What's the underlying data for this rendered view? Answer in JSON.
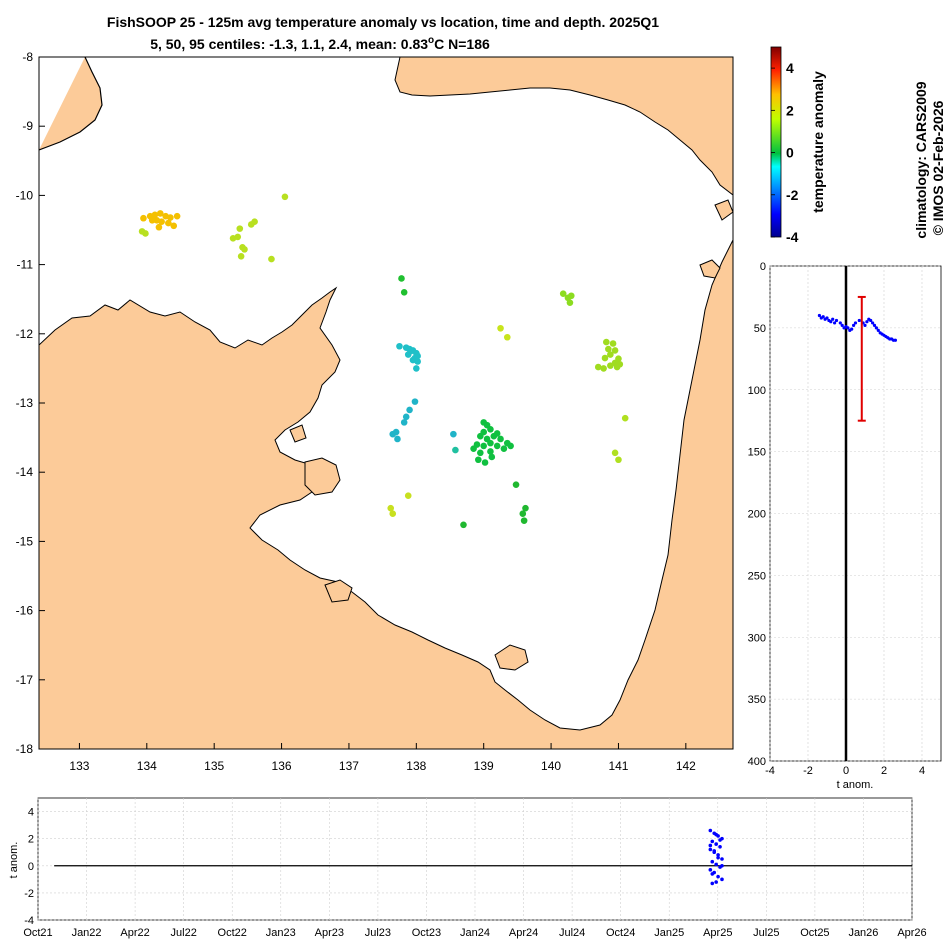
{
  "chart_data": [
    {
      "type": "scatter",
      "name": "map",
      "title": "FishSOOP 25 - 125m avg temperature anomaly vs location, time and depth. 2025Q1",
      "subtitle_prefix": "5, 50, 95 centiles: -1.3, 1.1, 2.4, mean: 0.83",
      "subtitle_unit": "o",
      "subtitle_suffix": "C N=186",
      "xlim": [
        132.4,
        142.7
      ],
      "ylim": [
        -18,
        -8
      ],
      "xticks": [
        "133",
        "134",
        "135",
        "136",
        "137",
        "138",
        "139",
        "140",
        "141",
        "142"
      ],
      "yticks": [
        "-8",
        "-9",
        "-10",
        "-11",
        "-12",
        "-13",
        "-14",
        "-15",
        "-16",
        "-17",
        "-18"
      ],
      "land_color": "#fccb99",
      "clusters": [
        {
          "name": "cluster-134.2E-10.3S",
          "color": "#f4c000",
          "points": [
            [
              133.95,
              -10.33
            ],
            [
              134.05,
              -10.3
            ],
            [
              134.12,
              -10.28
            ],
            [
              134.2,
              -10.26
            ],
            [
              134.28,
              -10.3
            ],
            [
              134.35,
              -10.32
            ],
            [
              134.45,
              -10.3
            ],
            [
              134.15,
              -10.36
            ],
            [
              134.22,
              -10.38
            ],
            [
              134.32,
              -10.4
            ],
            [
              134.4,
              -10.44
            ],
            [
              134.18,
              -10.46
            ],
            [
              134.08,
              -10.36
            ]
          ]
        },
        {
          "name": "cluster-135.4E-10.6S",
          "color": "#b8e020",
          "points": [
            [
              133.93,
              -10.52
            ],
            [
              133.98,
              -10.55
            ],
            [
              135.28,
              -10.62
            ],
            [
              135.35,
              -10.6
            ],
            [
              135.38,
              -10.48
            ],
            [
              135.55,
              -10.42
            ],
            [
              135.6,
              -10.38
            ],
            [
              135.42,
              -10.75
            ],
            [
              135.45,
              -10.78
            ],
            [
              135.4,
              -10.88
            ],
            [
              135.85,
              -10.92
            ],
            [
              136.05,
              -10.02
            ]
          ]
        },
        {
          "name": "cluster-137.8E-11.2S",
          "color": "#20c030",
          "points": [
            [
              137.78,
              -11.2
            ],
            [
              137.82,
              -11.4
            ]
          ]
        },
        {
          "name": "cluster-140.3E-11.5S",
          "color": "#8cdc20",
          "points": [
            [
              140.18,
              -11.42
            ],
            [
              140.25,
              -11.48
            ],
            [
              140.3,
              -11.45
            ],
            [
              140.28,
              -11.55
            ]
          ]
        },
        {
          "name": "cluster-139.3E-12S",
          "color": "#c8e41c",
          "points": [
            [
              139.25,
              -11.92
            ],
            [
              139.35,
              -12.05
            ]
          ]
        },
        {
          "name": "cluster-137.9E-12.4S",
          "color": "#20c0c8",
          "points": [
            [
              137.75,
              -12.18
            ],
            [
              137.85,
              -12.2
            ],
            [
              137.9,
              -12.22
            ],
            [
              137.95,
              -12.24
            ],
            [
              138.0,
              -12.28
            ],
            [
              138.02,
              -12.32
            ],
            [
              137.98,
              -12.35
            ],
            [
              138.02,
              -12.4
            ],
            [
              138.0,
              -12.5
            ],
            [
              137.95,
              -12.38
            ],
            [
              137.88,
              -12.3
            ],
            [
              137.92,
              -12.25
            ]
          ]
        },
        {
          "name": "cluster-140.9E-12.3S",
          "color": "#a0dc20",
          "points": [
            [
              140.82,
              -12.12
            ],
            [
              140.92,
              -12.14
            ],
            [
              140.85,
              -12.22
            ],
            [
              140.95,
              -12.24
            ],
            [
              140.88,
              -12.3
            ],
            [
              140.8,
              -12.35
            ],
            [
              141.0,
              -12.36
            ],
            [
              140.95,
              -12.42
            ],
            [
              140.7,
              -12.48
            ],
            [
              140.78,
              -12.5
            ],
            [
              140.88,
              -12.46
            ],
            [
              141.02,
              -12.44
            ],
            [
              140.98,
              -12.48
            ]
          ]
        },
        {
          "name": "cluster-137.8E-13.4S",
          "color": "#20b4c8",
          "points": [
            [
              137.98,
              -12.98
            ],
            [
              137.9,
              -13.1
            ],
            [
              137.85,
              -13.2
            ],
            [
              137.82,
              -13.28
            ],
            [
              137.7,
              -13.42
            ],
            [
              137.65,
              -13.45
            ],
            [
              137.72,
              -13.52
            ],
            [
              138.55,
              -13.45
            ]
          ]
        },
        {
          "name": "cluster-139.1E-13.6S",
          "color": "#10c040",
          "points": [
            [
              139.0,
              -13.28
            ],
            [
              139.05,
              -13.32
            ],
            [
              139.1,
              -13.38
            ],
            [
              139.0,
              -13.42
            ],
            [
              138.95,
              -13.48
            ],
            [
              139.05,
              -13.52
            ],
            [
              139.15,
              -13.48
            ],
            [
              139.2,
              -13.44
            ],
            [
              139.25,
              -13.52
            ],
            [
              139.1,
              -13.58
            ],
            [
              139.0,
              -13.62
            ],
            [
              138.9,
              -13.6
            ],
            [
              138.85,
              -13.66
            ],
            [
              138.95,
              -13.72
            ],
            [
              139.1,
              -13.7
            ],
            [
              139.2,
              -13.62
            ],
            [
              139.35,
              -13.58
            ],
            [
              139.3,
              -13.66
            ],
            [
              139.4,
              -13.62
            ],
            [
              138.92,
              -13.82
            ],
            [
              139.02,
              -13.86
            ],
            [
              139.12,
              -13.78
            ]
          ]
        },
        {
          "name": "cluster-138.6E-13.7S",
          "color": "#20c0a0",
          "points": [
            [
              138.58,
              -13.68
            ]
          ]
        },
        {
          "name": "cluster-141E-13.7S",
          "color": "#b0e020",
          "points": [
            [
              140.95,
              -13.72
            ],
            [
              141.0,
              -13.82
            ],
            [
              141.1,
              -13.22
            ]
          ]
        },
        {
          "name": "cluster-139.5E-14.4S",
          "color": "#20b830",
          "points": [
            [
              139.48,
              -14.18
            ],
            [
              139.58,
              -14.6
            ],
            [
              139.62,
              -14.52
            ],
            [
              139.6,
              -14.7
            ],
            [
              138.7,
              -14.76
            ]
          ]
        },
        {
          "name": "cluster-137.7E-14.5S",
          "color": "#c8e020",
          "points": [
            [
              137.88,
              -14.34
            ],
            [
              137.62,
              -14.52
            ],
            [
              137.65,
              -14.6
            ]
          ]
        }
      ]
    },
    {
      "type": "colorbar",
      "name": "colorbar",
      "label": "temperature anomaly",
      "ylim": [
        -4,
        5
      ],
      "ticks": [
        "4",
        "2",
        "0",
        "-2",
        "-4"
      ],
      "tick_values": [
        4,
        2,
        0,
        -2,
        -4
      ]
    },
    {
      "type": "scatter",
      "name": "depth-profile",
      "xlabel": "t anom.",
      "xlim": [
        -4,
        5
      ],
      "ylim": [
        0,
        400
      ],
      "xticks": [
        "-4",
        "-2",
        "0",
        "2",
        "4"
      ],
      "xtick_values": [
        -4,
        -2,
        0,
        2,
        4
      ],
      "yticks": [
        "0",
        "50",
        "100",
        "150",
        "200",
        "250",
        "300",
        "350",
        "400"
      ],
      "ytick_values": [
        0,
        50,
        100,
        150,
        200,
        250,
        300,
        350,
        400
      ],
      "points": [
        [
          -1.4,
          40
        ],
        [
          -1.3,
          42
        ],
        [
          -1.2,
          41
        ],
        [
          -1.1,
          43
        ],
        [
          -1.0,
          42
        ],
        [
          -0.9,
          44
        ],
        [
          -0.8,
          45
        ],
        [
          -0.7,
          43
        ],
        [
          -0.6,
          46
        ],
        [
          -0.5,
          44
        ],
        [
          -0.3,
          46
        ],
        [
          -0.2,
          48
        ],
        [
          -0.1,
          50
        ],
        [
          0.0,
          49
        ],
        [
          0.1,
          50
        ],
        [
          0.2,
          52
        ],
        [
          0.3,
          51
        ],
        [
          0.4,
          48
        ],
        [
          0.5,
          46
        ],
        [
          0.7,
          44
        ],
        [
          0.9,
          46
        ],
        [
          1.0,
          48
        ],
        [
          1.1,
          45
        ],
        [
          1.2,
          43
        ],
        [
          1.3,
          44
        ],
        [
          1.4,
          46
        ],
        [
          1.5,
          48
        ],
        [
          1.6,
          50
        ],
        [
          1.7,
          52
        ],
        [
          1.8,
          54
        ],
        [
          1.9,
          55
        ],
        [
          2.0,
          56
        ],
        [
          2.1,
          57
        ],
        [
          2.2,
          58
        ],
        [
          2.3,
          59
        ],
        [
          2.4,
          59
        ],
        [
          2.5,
          60
        ],
        [
          2.6,
          60
        ]
      ],
      "errorbar": {
        "x": 0.83,
        "y_low": 25,
        "y_high": 125
      },
      "zero_line": 0
    },
    {
      "type": "scatter",
      "name": "time-series",
      "ylabel": "t anom.",
      "ylim": [
        -4,
        5
      ],
      "yticks": [
        "4",
        "2",
        "0",
        "-2",
        "-4"
      ],
      "ytick_values": [
        4,
        2,
        0,
        -2,
        -4
      ],
      "xticks": [
        "Oct21",
        "Jan22",
        "Apr22",
        "Jul22",
        "Oct22",
        "Jan23",
        "Apr23",
        "Jul23",
        "Oct23",
        "Jan24",
        "Apr24",
        "Jul24",
        "Oct24",
        "Jan25",
        "Apr25",
        "Jul25",
        "Oct25",
        "Jan26",
        "Apr26"
      ],
      "points_month_index": 41.9,
      "point_values": [
        2.6,
        2.4,
        2.2,
        2.0,
        1.8,
        1.6,
        1.4,
        1.2,
        1.0,
        0.8,
        0.5,
        0.3,
        0.1,
        -0.1,
        -0.3,
        -0.5,
        -0.8,
        -1.0,
        -1.3,
        2.3,
        1.9,
        1.5,
        1.1,
        0.6,
        0.0,
        -0.6,
        -1.2
      ],
      "zero_line": 0
    }
  ],
  "side_text": {
    "climatology": "climatology: CARS2009",
    "copyright": "© IMOS 02-Feb-2026"
  }
}
